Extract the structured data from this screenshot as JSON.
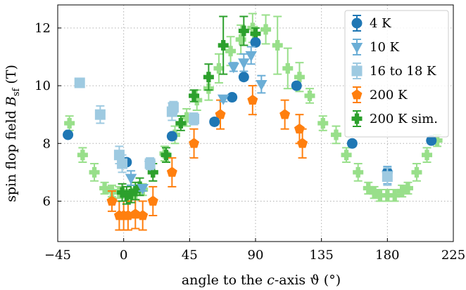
{
  "chart_data": {
    "type": "scatter",
    "title": "",
    "xlabel": "angle to the c-axis ϑ (°)",
    "xlabel_parts": [
      "angle to the ",
      "c",
      "-axis ϑ (°)"
    ],
    "ylabel": "spin flop field B_sf (T)",
    "ylabel_parts": [
      "spin flop field ",
      "B",
      "sf",
      " (T)"
    ],
    "xlim": [
      -45,
      225
    ],
    "ylim": [
      4.6,
      12.8
    ],
    "xticks": [
      -45,
      0,
      45,
      90,
      135,
      180,
      225
    ],
    "xtick_labels": [
      "−45",
      "0",
      "45",
      "90",
      "135",
      "180",
      "225"
    ],
    "yticks": [
      6,
      8,
      10,
      12
    ],
    "ytick_labels": [
      "6",
      "8",
      "10",
      "12"
    ],
    "grid": true,
    "legend_position": "top-right",
    "series": [
      {
        "name": "200 K sim.",
        "shape": "plus",
        "color": "#98df8a",
        "points": [
          [
            -37,
            8.7,
            0.25
          ],
          [
            -28,
            7.6,
            0.25
          ],
          [
            -20,
            7.0,
            0.3
          ],
          [
            -13,
            6.45,
            0.2
          ],
          [
            -8,
            6.35,
            0.2
          ],
          [
            -3,
            6.3,
            0.2
          ],
          [
            3,
            6.2,
            0.2
          ],
          [
            8,
            6.25,
            0.2
          ],
          [
            13,
            6.4,
            0.2
          ],
          [
            20,
            7.0,
            0.3
          ],
          [
            28,
            7.65,
            0.25
          ],
          [
            35,
            8.3,
            0.3
          ],
          [
            43,
            8.9,
            0.3
          ],
          [
            50,
            9.5,
            0.35
          ],
          [
            58,
            9.9,
            0.4
          ],
          [
            65,
            10.6,
            0.5
          ],
          [
            73,
            11.2,
            0.5
          ],
          [
            80,
            11.6,
            0.5
          ],
          [
            88,
            12.0,
            0.5
          ],
          [
            97,
            11.95,
            0.5
          ],
          [
            105,
            11.4,
            1.0
          ],
          [
            112,
            10.6,
            0.7
          ],
          [
            120,
            10.3,
            0.5
          ],
          [
            127,
            9.65,
            0.25
          ],
          [
            136,
            8.7,
            0.25
          ],
          [
            145,
            8.3,
            0.3
          ],
          [
            152,
            7.6,
            0.25
          ],
          [
            160,
            7.0,
            0.3
          ],
          [
            167,
            6.45,
            0.2
          ],
          [
            171,
            6.3,
            0.2
          ],
          [
            175,
            6.2,
            0.2
          ],
          [
            180,
            6.2,
            0.2
          ],
          [
            185,
            6.2,
            0.2
          ],
          [
            190,
            6.35,
            0.2
          ],
          [
            194,
            6.45,
            0.2
          ],
          [
            200,
            7.0,
            0.3
          ],
          [
            207,
            7.6,
            0.25
          ],
          [
            214,
            8.1,
            0.2
          ]
        ]
      },
      {
        "name": "200 K",
        "shape": "pentagon",
        "color": "#ff7f0e",
        "points": [
          [
            -8,
            6.0,
            0.35
          ],
          [
            -3,
            5.5,
            0.5
          ],
          [
            0,
            5.5,
            0.5
          ],
          [
            3,
            5.5,
            0.5
          ],
          [
            8,
            5.55,
            0.5
          ],
          [
            13,
            5.5,
            0.5
          ],
          [
            20,
            6.0,
            0.5
          ],
          [
            33,
            7.0,
            0.5
          ],
          [
            48,
            8.0,
            0.5
          ],
          [
            66,
            9.0,
            0.5
          ],
          [
            88,
            9.5,
            0.5
          ],
          [
            110,
            9.0,
            0.5
          ],
          [
            120,
            8.5,
            0.5
          ],
          [
            122,
            8.0,
            0.5
          ]
        ]
      },
      {
        "name": "200 K sim.",
        "shape": "plus",
        "color": "#2ca02c",
        "points": [
          [
            -1,
            6.3,
            0.3
          ],
          [
            2,
            6.2,
            0.3
          ],
          [
            5,
            6.25,
            0.3
          ],
          [
            8,
            6.35,
            0.3
          ],
          [
            11,
            6.5,
            0.3
          ],
          [
            20,
            7.0,
            0.3
          ],
          [
            29,
            7.6,
            0.25
          ],
          [
            39,
            8.7,
            0.25
          ],
          [
            48,
            9.65,
            0.2
          ],
          [
            58,
            10.3,
            0.45
          ],
          [
            68,
            11.4,
            1.0
          ],
          [
            82,
            11.9,
            0.5
          ],
          [
            90,
            11.8,
            0.2
          ]
        ]
      },
      {
        "name": "4 K",
        "shape": "circle",
        "color": "#1f77b4",
        "points": [
          [
            -38,
            8.3,
            0.05
          ],
          [
            2,
            7.35,
            0.1
          ],
          [
            33,
            8.25,
            0.1
          ],
          [
            62,
            8.75,
            0.1
          ],
          [
            74,
            9.6,
            0.1
          ],
          [
            82,
            10.3,
            0.1
          ],
          [
            90,
            11.5,
            0.1
          ],
          [
            118,
            10.0,
            0.1
          ],
          [
            156,
            8.0,
            0.1
          ],
          [
            180,
            7.0,
            0.1
          ],
          [
            210,
            8.1,
            0.1
          ]
        ]
      },
      {
        "name": "10 K",
        "shape": "triangle-down",
        "color": "#6baed6",
        "points": [
          [
            5,
            6.8,
            0.25
          ],
          [
            13,
            6.45,
            0.1
          ],
          [
            18,
            7.25,
            0.1
          ],
          [
            68,
            9.55,
            0.1
          ],
          [
            75,
            10.65,
            0.15
          ],
          [
            82,
            10.8,
            0.3
          ],
          [
            87,
            11.05,
            0.3
          ],
          [
            94,
            10.05,
            0.3
          ],
          [
            180,
            6.9,
            0.3
          ]
        ]
      },
      {
        "name": "16 to 18 K",
        "shape": "square",
        "color": "#9ecae1",
        "points": [
          [
            -30,
            10.1,
            0.1
          ],
          [
            -16,
            9.0,
            0.3
          ],
          [
            -3,
            7.6,
            0.3
          ],
          [
            -1,
            7.3,
            0.3
          ],
          [
            18,
            7.3,
            0.2
          ],
          [
            33,
            9.1,
            0.3
          ],
          [
            34,
            9.25,
            0.2
          ],
          [
            48,
            8.85,
            0.2
          ],
          [
            180,
            6.85,
            0.3
          ]
        ]
      }
    ],
    "legend": [
      {
        "label": "4 K",
        "shape": "circle",
        "color": "#1f77b4"
      },
      {
        "label": "10 K",
        "shape": "triangle-down",
        "color": "#6baed6"
      },
      {
        "label": "16 to 18 K",
        "shape": "square",
        "color": "#9ecae1"
      },
      {
        "label": "200 K",
        "shape": "pentagon",
        "color": "#ff7f0e"
      },
      {
        "label": "200 K sim.",
        "shape": "plus",
        "color": "#2ca02c"
      }
    ]
  }
}
